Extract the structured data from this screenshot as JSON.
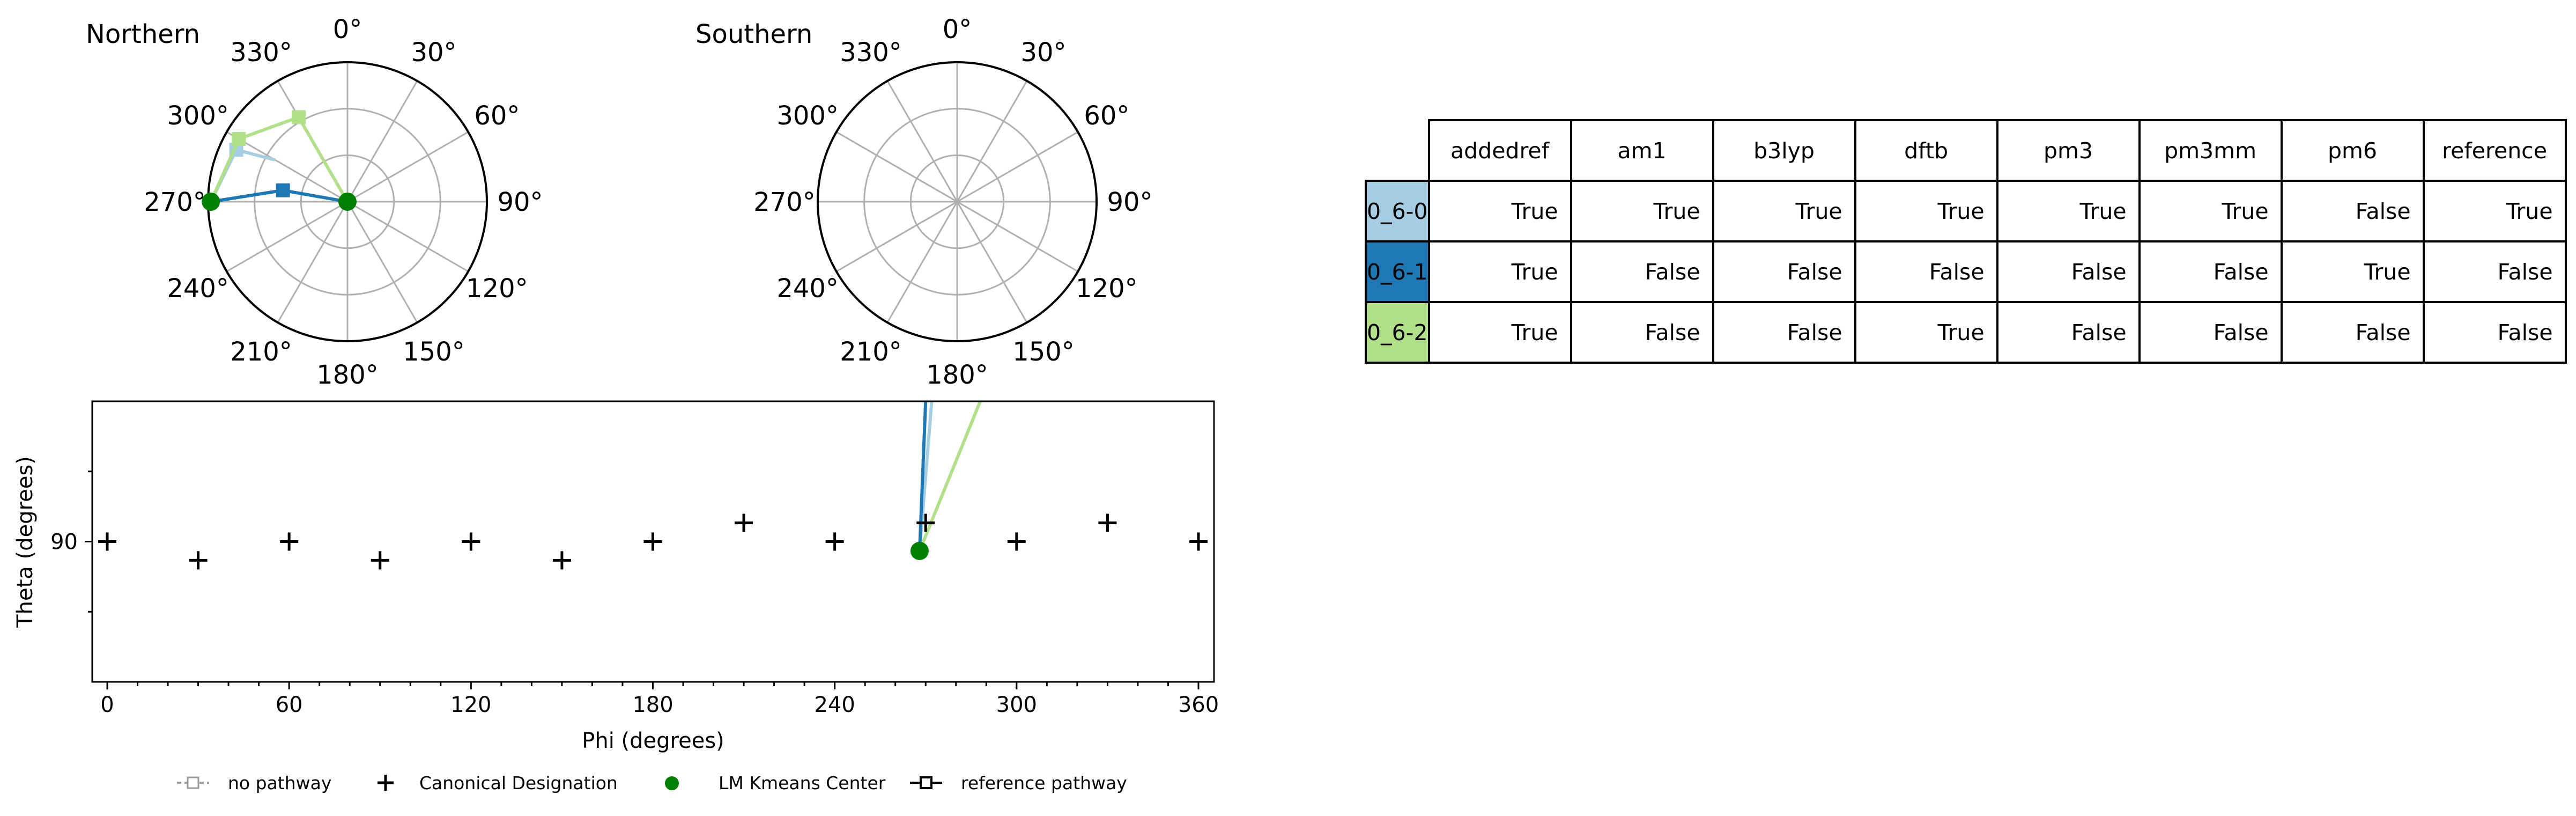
{
  "colors": {
    "0_6-0": "#a6cee3",
    "0_6-1": "#1f78b4",
    "0_6-2": "#b2df8a",
    "kmeans": "#008000",
    "grid": "#b0b0b0"
  },
  "polar_titles": [
    "Northern",
    "Southern"
  ],
  "angle_labels": [
    "0°",
    "30°",
    "60°",
    "90°",
    "120°",
    "150°",
    "180°",
    "210°",
    "240°",
    "270°",
    "300°",
    "330°"
  ],
  "bottom_plot": {
    "xlabel": "Phi (degrees)",
    "ylabel": "Theta (degrees)",
    "xticks": [
      "0",
      "60",
      "120",
      "180",
      "240",
      "300",
      "360"
    ],
    "yticks": [
      "90"
    ]
  },
  "legend": [
    {
      "label": "no pathway",
      "marker": "dashed-square"
    },
    {
      "label": "Canonical Designation",
      "marker": "plus"
    },
    {
      "label": "LM Kmeans Center",
      "marker": "green-dot"
    },
    {
      "label": "reference pathway",
      "marker": "solid-square"
    }
  ],
  "table": {
    "columns": [
      "addedref",
      "am1",
      "b3lyp",
      "dftb",
      "pm3",
      "pm3mm",
      "pm6",
      "reference"
    ],
    "rows": [
      {
        "label": "0_6-0",
        "color": "#a6cee3",
        "values": [
          "True",
          "True",
          "True",
          "True",
          "True",
          "True",
          "False",
          "True"
        ]
      },
      {
        "label": "0_6-1",
        "color": "#1f78b4",
        "values": [
          "True",
          "False",
          "False",
          "False",
          "False",
          "False",
          "True",
          "False"
        ]
      },
      {
        "label": "0_6-2",
        "color": "#b2df8a",
        "values": [
          "True",
          "False",
          "False",
          "True",
          "False",
          "False",
          "False",
          "False"
        ]
      }
    ]
  },
  "chart_data": [
    {
      "type": "scatter",
      "title": "Northern",
      "coordinate_system": "polar",
      "angle_unit": "degrees",
      "radial_range": [
        0,
        1
      ],
      "grid": true,
      "series": [
        {
          "name": "0_6-0",
          "phi": [
            270,
            295,
            300
          ],
          "r": [
            0.98,
            0.88,
            0.6
          ],
          "marker": "square"
        },
        {
          "name": "0_6-1",
          "phi": [
            270,
            280,
            300
          ],
          "r": [
            0.98,
            0.47,
            0.0
          ],
          "marker": "square"
        },
        {
          "name": "0_6-2",
          "phi": [
            270,
            300,
            330,
            300
          ],
          "r": [
            0.98,
            0.9,
            0.7,
            0.0
          ],
          "marker": "square"
        }
      ],
      "kmeans_centers": [
        {
          "phi": 270,
          "r": 0.98
        },
        {
          "phi": 0,
          "r": 0.0
        }
      ]
    },
    {
      "type": "scatter",
      "title": "Southern",
      "coordinate_system": "polar",
      "angle_unit": "degrees",
      "radial_range": [
        0,
        1
      ],
      "grid": true,
      "series": []
    },
    {
      "type": "scatter",
      "xlabel": "Phi (degrees)",
      "ylabel": "Theta (degrees)",
      "xlim": [
        0,
        360
      ],
      "ylim": [
        67.5,
        112.5
      ],
      "grid": false,
      "canonical_designations": [
        {
          "x": 0,
          "y": 90
        },
        {
          "x": 30,
          "y": 87
        },
        {
          "x": 60,
          "y": 90
        },
        {
          "x": 90,
          "y": 87
        },
        {
          "x": 120,
          "y": 90
        },
        {
          "x": 150,
          "y": 87
        },
        {
          "x": 180,
          "y": 90
        },
        {
          "x": 210,
          "y": 93
        },
        {
          "x": 240,
          "y": 90
        },
        {
          "x": 270,
          "y": 93
        },
        {
          "x": 300,
          "y": 90
        },
        {
          "x": 330,
          "y": 93
        },
        {
          "x": 360,
          "y": 90
        }
      ],
      "kmeans_center": {
        "x": 268,
        "y": 88.5
      },
      "series": [
        {
          "name": "0_6-0",
          "x": [
            268,
            272
          ],
          "y": [
            88.5,
            112.5
          ]
        },
        {
          "name": "0_6-1",
          "x": [
            268,
            270
          ],
          "y": [
            88.5,
            112.5
          ]
        },
        {
          "name": "0_6-2",
          "x": [
            268,
            288
          ],
          "y": [
            88.5,
            112.5
          ]
        }
      ]
    }
  ]
}
